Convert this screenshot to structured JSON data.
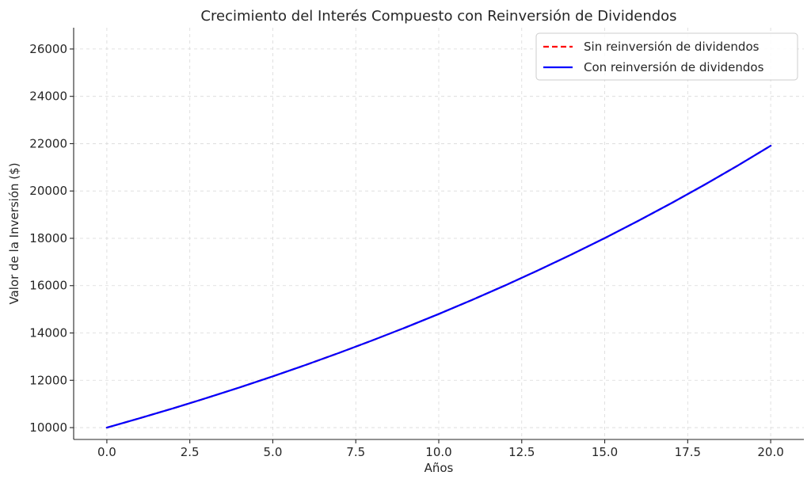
{
  "chart_data": {
    "type": "line",
    "title": "Crecimiento del Interés Compuesto con Reinversión de Dividendos",
    "xlabel": "Años",
    "ylabel": "Valor de la Inversión ($)",
    "xlim": [
      -1,
      21
    ],
    "ylim": [
      9500,
      26900
    ],
    "xticks": [
      0.0,
      2.5,
      5.0,
      7.5,
      10.0,
      12.5,
      15.0,
      17.5,
      20.0
    ],
    "xtick_labels": [
      "0.0",
      "2.5",
      "5.0",
      "7.5",
      "10.0",
      "12.5",
      "15.0",
      "17.5",
      "20.0"
    ],
    "yticks": [
      10000,
      12000,
      14000,
      16000,
      18000,
      20000,
      22000,
      24000,
      26000
    ],
    "ytick_labels": [
      "10000",
      "12000",
      "14000",
      "16000",
      "18000",
      "20000",
      "22000",
      "24000",
      "26000"
    ],
    "grid": true,
    "legend_position": "top-right",
    "x": [
      0,
      1,
      2,
      3,
      4,
      5,
      6,
      7,
      8,
      9,
      10,
      11,
      12,
      13,
      14,
      15,
      16,
      17,
      18,
      19,
      20
    ],
    "series": [
      {
        "name": "Sin reinversión de dividendos",
        "style": "dashed",
        "color": "#ff0000",
        "values": [
          10000,
          10400,
          10816,
          11249,
          11699,
          12167,
          12653,
          13159,
          13686,
          14233,
          14802,
          15395,
          16010,
          16651,
          17317,
          18009,
          18730,
          19479,
          20258,
          21068,
          21911
        ]
      },
      {
        "name": "Con reinversión de dividendos",
        "style": "solid",
        "color": "#0000ff",
        "values": [
          10000,
          10400,
          10816,
          11249,
          11699,
          12167,
          12653,
          13159,
          13686,
          14233,
          14802,
          15395,
          16010,
          16651,
          17317,
          18009,
          18730,
          19479,
          20258,
          21068,
          21911
        ]
      }
    ]
  }
}
